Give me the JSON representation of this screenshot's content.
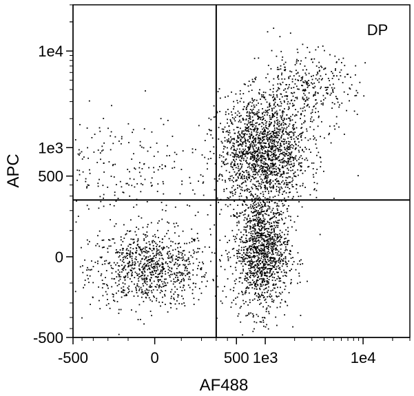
{
  "chart_data": {
    "type": "scatter",
    "title": "",
    "xlabel": "AF488",
    "ylabel": "APC",
    "x_scale": "biexponential",
    "y_scale": "biexponential",
    "xlim": [
      -500,
      30000
    ],
    "ylim": [
      -500,
      30000
    ],
    "x_ticks": [
      {
        "value": -500,
        "label": "-500"
      },
      {
        "value": 0,
        "label": "0"
      },
      {
        "value": 500,
        "label": "500"
      },
      {
        "value": 1000,
        "label": "1e3"
      },
      {
        "value": 10000,
        "label": "1e4"
      }
    ],
    "y_ticks": [
      {
        "value": -500,
        "label": "-500"
      },
      {
        "value": 0,
        "label": "0"
      },
      {
        "value": 500,
        "label": "500"
      },
      {
        "value": 1000,
        "label": "1e3"
      },
      {
        "value": 10000,
        "label": "1e4"
      }
    ],
    "gates": {
      "x_threshold": 300,
      "y_threshold": 270
    },
    "quadrant_labels": [
      {
        "quadrant": "top-right",
        "text": "DP"
      }
    ],
    "point_color": "#000000",
    "populations": [
      {
        "name": "",
        "center": [
          -20,
          -40
        ],
        "spread": [
          110,
          70
        ],
        "count": 900
      },
      {
        "name": "",
        "center": [
          900,
          20
        ],
        "spread": [
          350,
          120
        ],
        "count": 1300
      },
      {
        "name": "",
        "center": [
          950,
          950
        ],
        "spread": [
          650,
          900
        ],
        "count": 1700
      },
      {
        "name": "",
        "center": [
          2500,
          4000
        ],
        "spread": [
          2000,
          2500
        ],
        "count": 350
      },
      {
        "name": "",
        "center": [
          -120,
          600
        ],
        "spread": [
          250,
          600
        ],
        "count": 280
      }
    ]
  }
}
